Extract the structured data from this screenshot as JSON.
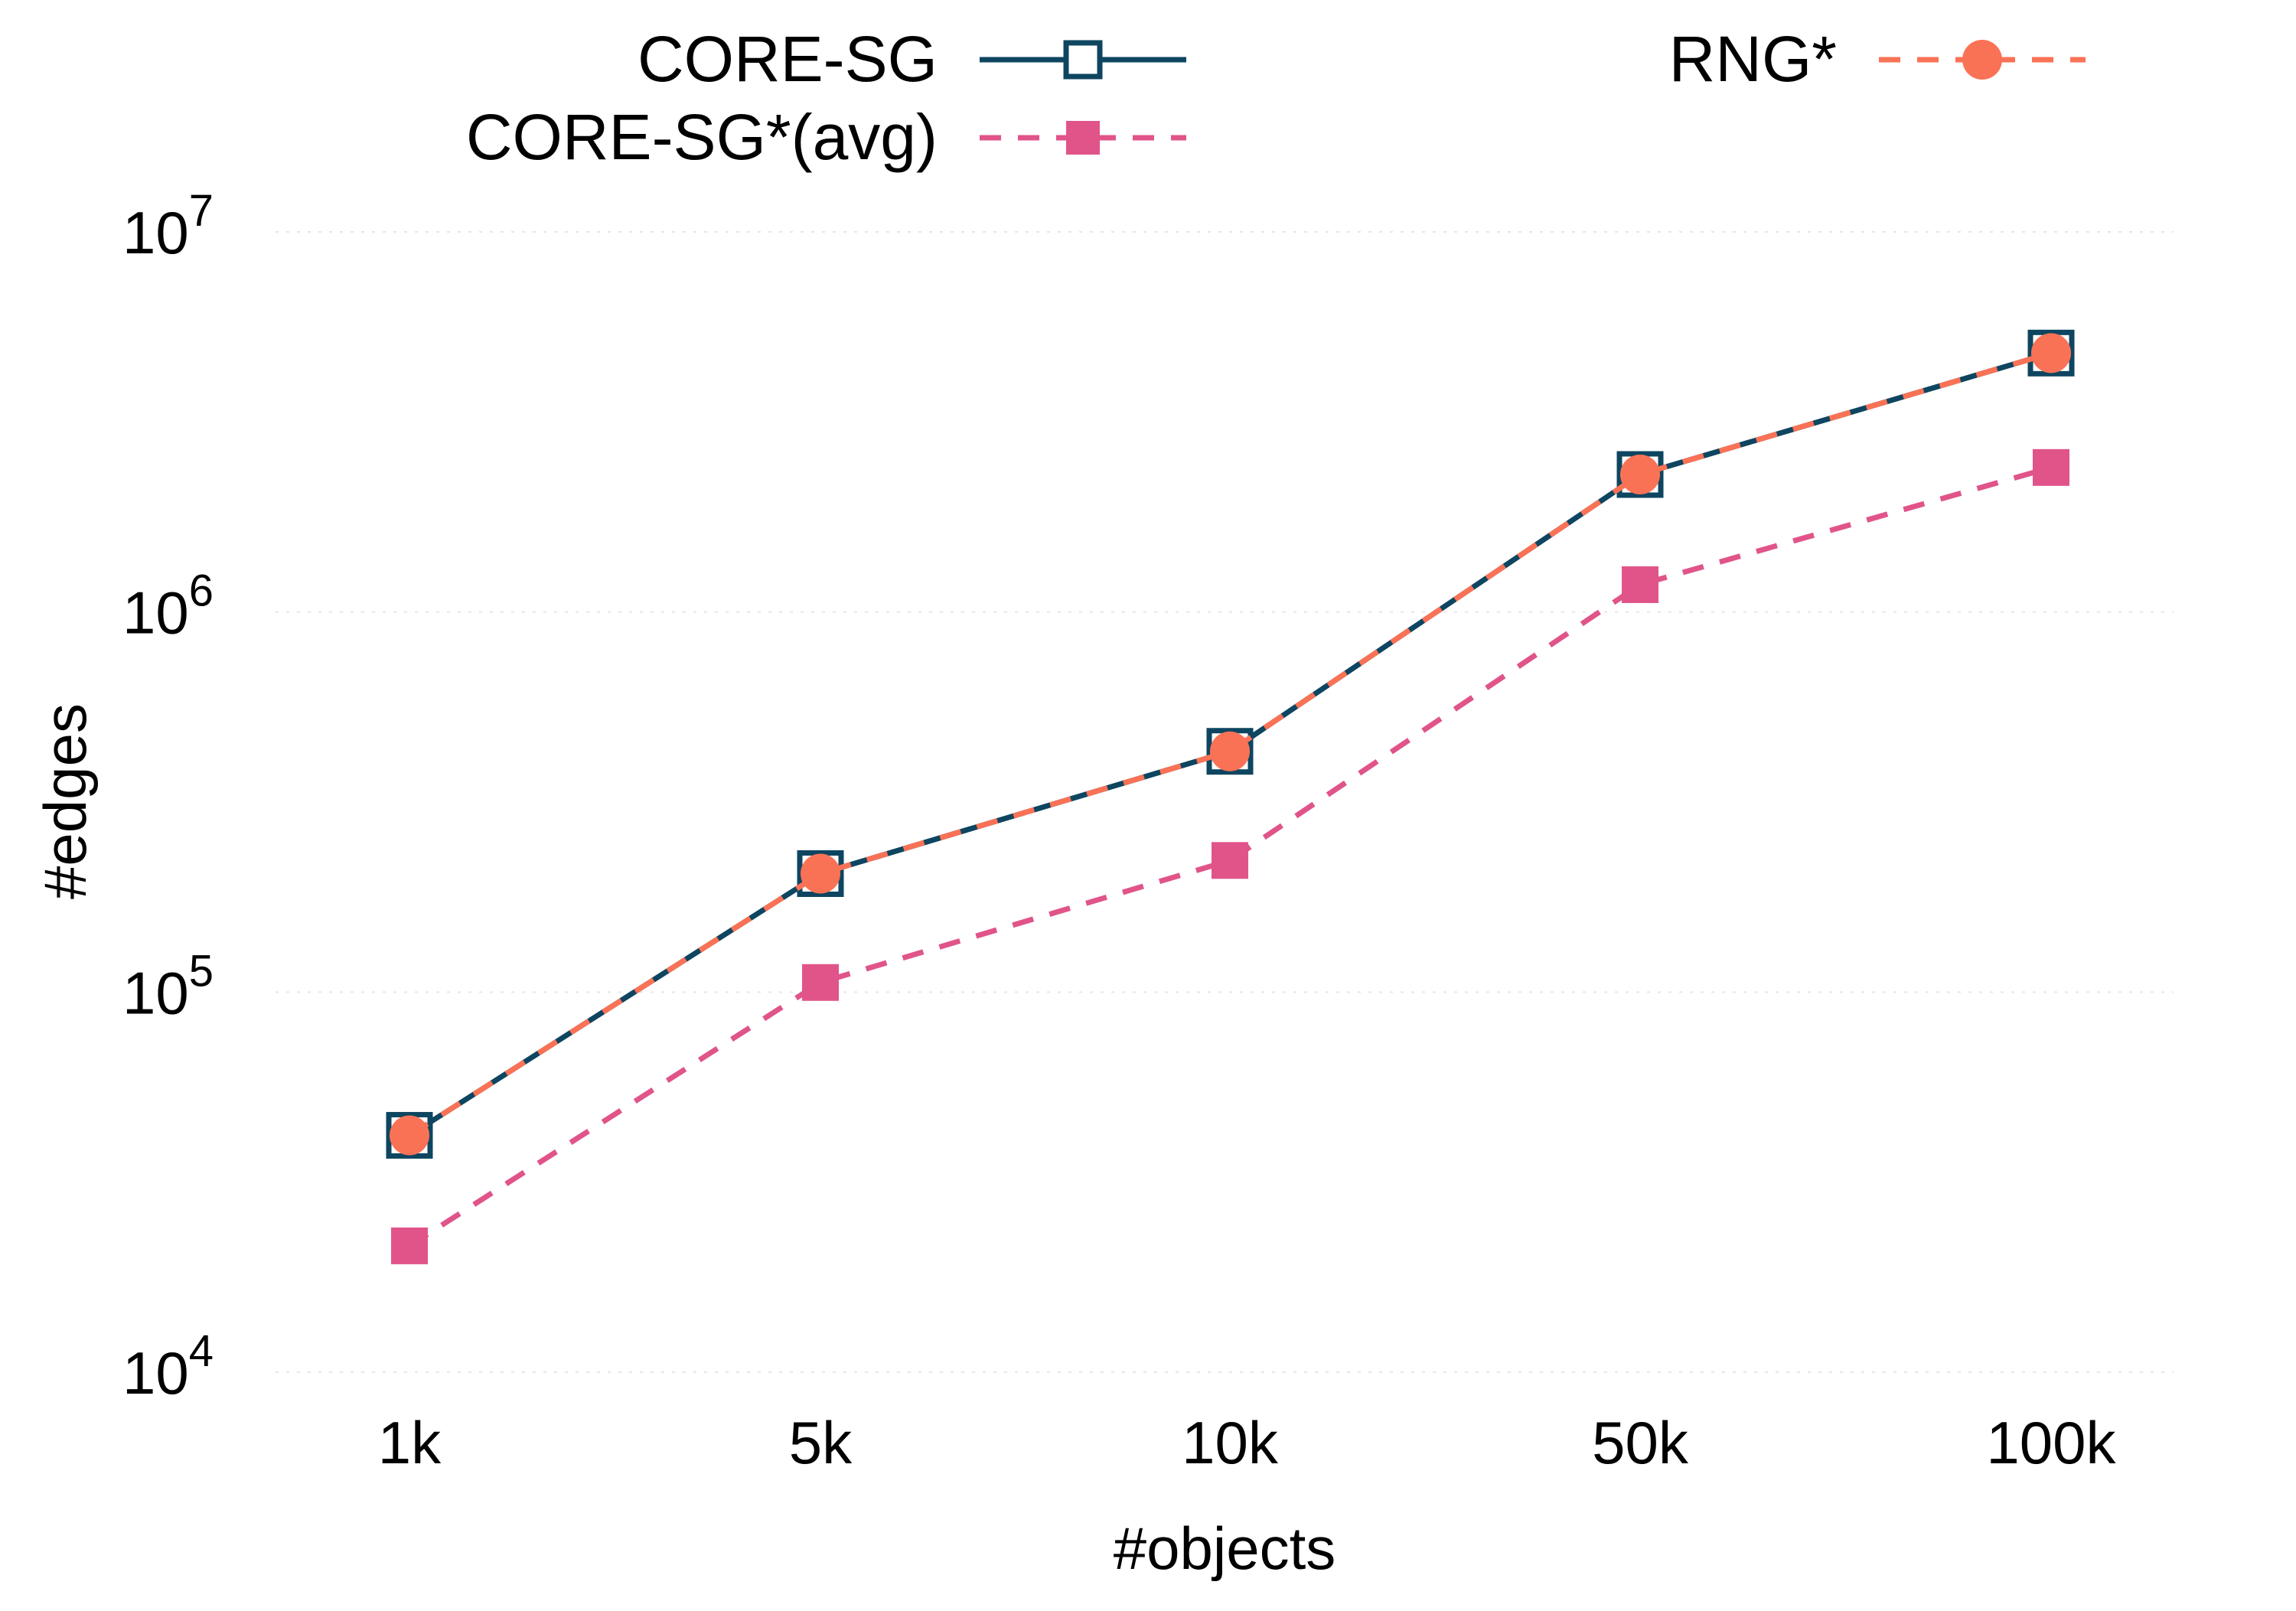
{
  "chart_data": {
    "type": "line",
    "title": "",
    "xlabel": "#objects",
    "ylabel": "#edges",
    "categories": [
      "1k",
      "5k",
      "10k",
      "50k",
      "100k"
    ],
    "y_scale": "log",
    "ylim": [
      10000,
      10000000
    ],
    "y_ticks": [
      {
        "base": "10",
        "exp": "4",
        "value": 10000
      },
      {
        "base": "10",
        "exp": "5",
        "value": 100000
      },
      {
        "base": "10",
        "exp": "6",
        "value": 1000000
      },
      {
        "base": "10",
        "exp": "7",
        "value": 10000000
      }
    ],
    "grid": "horizontal dotted",
    "legend_position": "top",
    "series": [
      {
        "name": "CORE-SG",
        "values": [
          42000,
          205000,
          430000,
          2300000,
          4800000
        ],
        "color": "#0e4560",
        "line_style": "solid",
        "marker": "open-square"
      },
      {
        "name": "CORE-SG*(avg)",
        "values": [
          21500,
          106000,
          222000,
          1180000,
          2400000
        ],
        "color": "#e0548a",
        "line_style": "dashed",
        "marker": "filled-square"
      },
      {
        "name": "RNG*",
        "values": [
          42000,
          205000,
          430000,
          2300000,
          4800000
        ],
        "color": "#fa7256",
        "line_style": "dashed",
        "marker": "filled-circle"
      }
    ]
  }
}
